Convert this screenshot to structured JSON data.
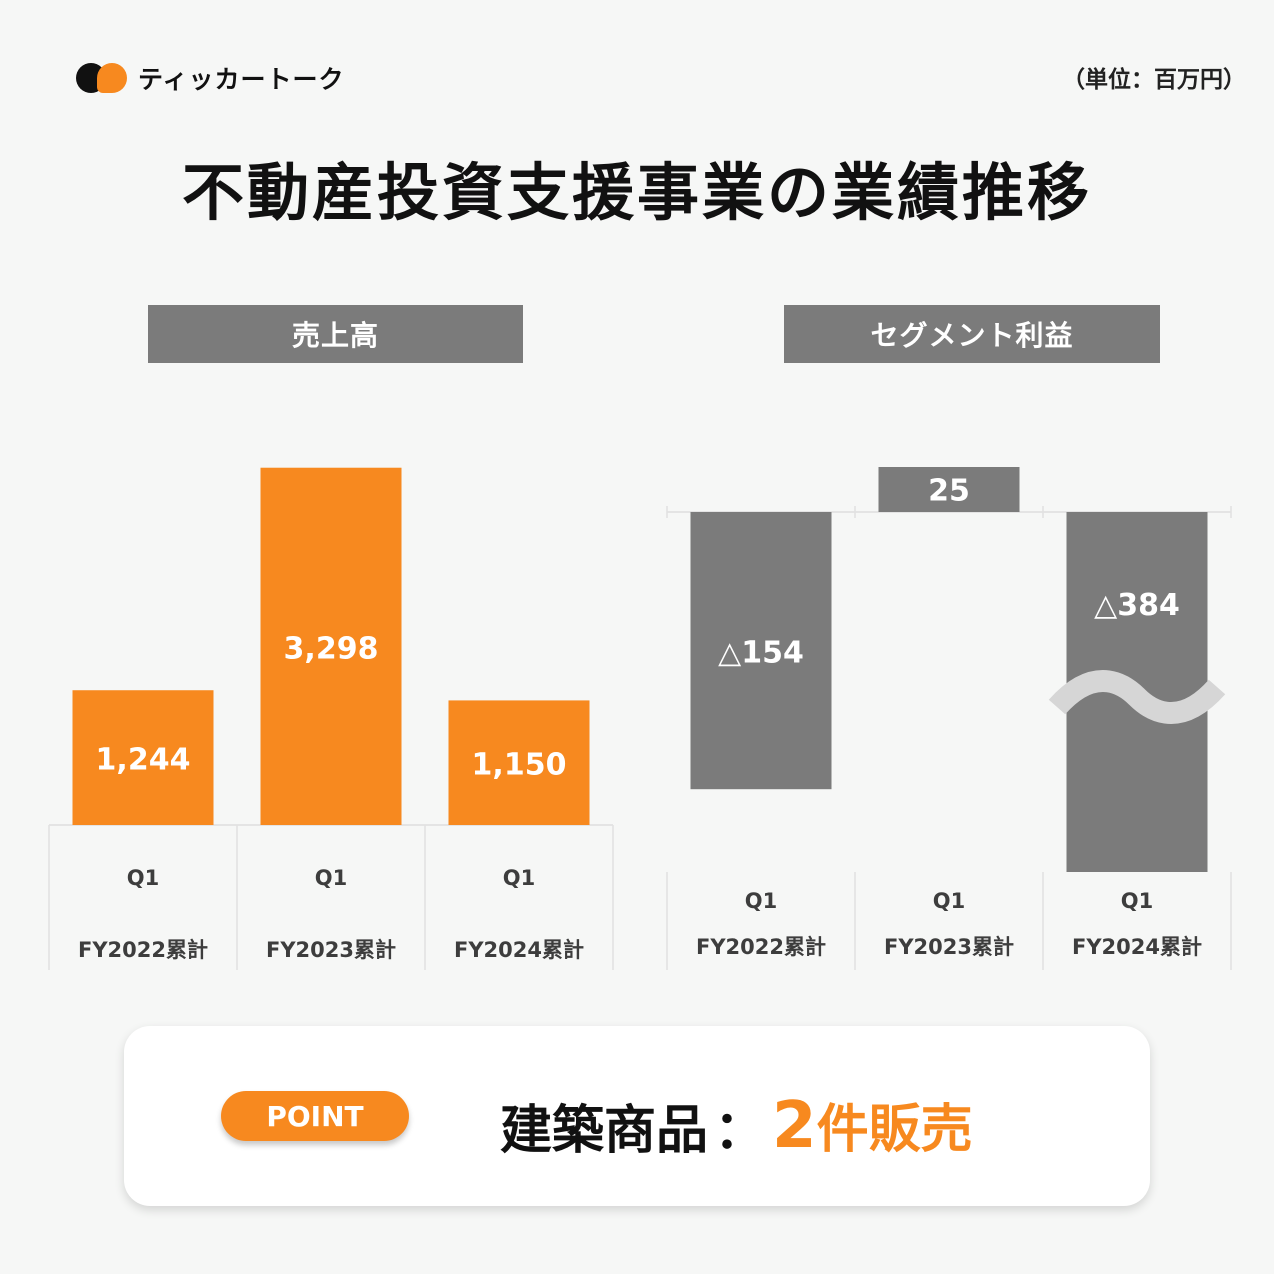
{
  "brand": {
    "name": "ティッカートーク",
    "logo_icon": "two-dots-logo-icon"
  },
  "unit_note": "（単位：百万円）",
  "title": "不動産投資支援事業の業績推移",
  "colors": {
    "accent": "#f7891f",
    "gray": "#7b7b7b",
    "break_mark": "#d6d6d6"
  },
  "chart_data": [
    {
      "type": "bar",
      "title": "売上高",
      "categories": [
        [
          "Q1",
          "FY2022累計"
        ],
        [
          "Q1",
          "FY2023累計"
        ],
        [
          "Q1",
          "FY2024累計"
        ]
      ],
      "values": [
        1244,
        3298,
        1150
      ],
      "value_labels": [
        "1,244",
        "3,298",
        "1,150"
      ],
      "ylim": [
        0,
        3600
      ],
      "color": "#f7891f"
    },
    {
      "type": "bar",
      "title": "セグメント利益",
      "categories": [
        [
          "Q1",
          "FY2022累計"
        ],
        [
          "Q1",
          "FY2023累計"
        ],
        [
          "Q1",
          "FY2024累計"
        ]
      ],
      "values": [
        -154,
        25,
        -384
      ],
      "value_labels": [
        "△154",
        "25",
        "△384"
      ],
      "axis_break_on": "FY2024累計",
      "color": "#7b7b7b"
    }
  ],
  "point": {
    "badge": "POINT",
    "label": "建築商品",
    "colon": "：",
    "value_number": "2",
    "value_rest": "件販売"
  }
}
